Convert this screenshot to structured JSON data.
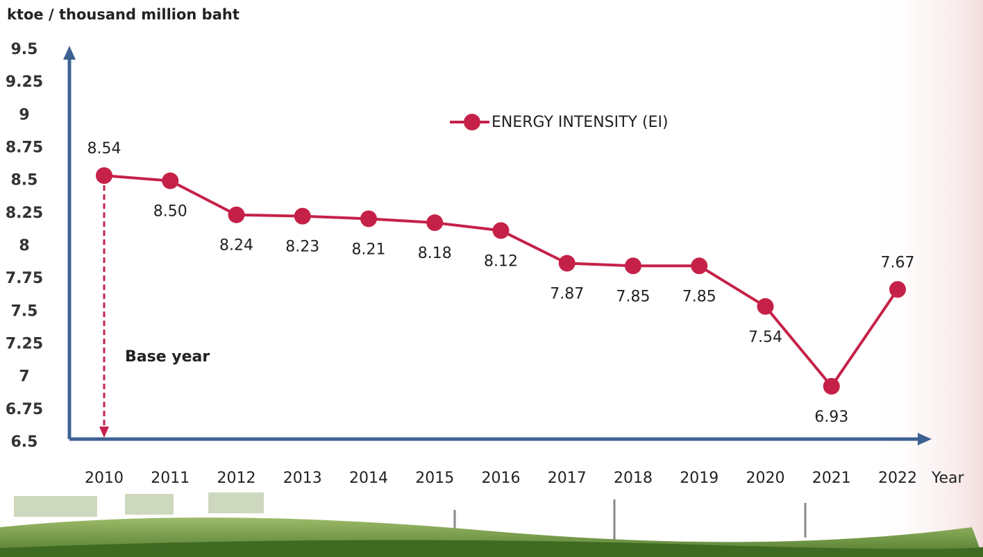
{
  "chart_data": {
    "type": "line",
    "y_axis_label": "ktoe / thousand million baht",
    "x_axis_label": "Year",
    "annotation": "Base year",
    "categories": [
      "2010",
      "2011",
      "2012",
      "2013",
      "2014",
      "2015",
      "2016",
      "2017",
      "2018",
      "2019",
      "2020",
      "2021",
      "2022"
    ],
    "series": [
      {
        "name": "ENERGY INTENSITY (EI)",
        "color": "#c52148",
        "values": [
          8.54,
          8.5,
          8.24,
          8.23,
          8.21,
          8.18,
          8.12,
          7.87,
          7.85,
          7.85,
          7.54,
          6.93,
          7.67
        ],
        "value_labels": [
          "8.54",
          "8.50",
          "8.24",
          "8.23",
          "8.21",
          "8.18",
          "8.12",
          "7.87",
          "7.85",
          "7.85",
          "7.54",
          "6.93",
          "7.67"
        ]
      }
    ],
    "ylim": [
      6.5,
      9.5
    ],
    "yticks": [
      6.5,
      6.75,
      7,
      7.25,
      7.5,
      7.75,
      8,
      8.25,
      8.5,
      8.75,
      9,
      9.25,
      9.5
    ],
    "axis_color": "#3d6191"
  }
}
